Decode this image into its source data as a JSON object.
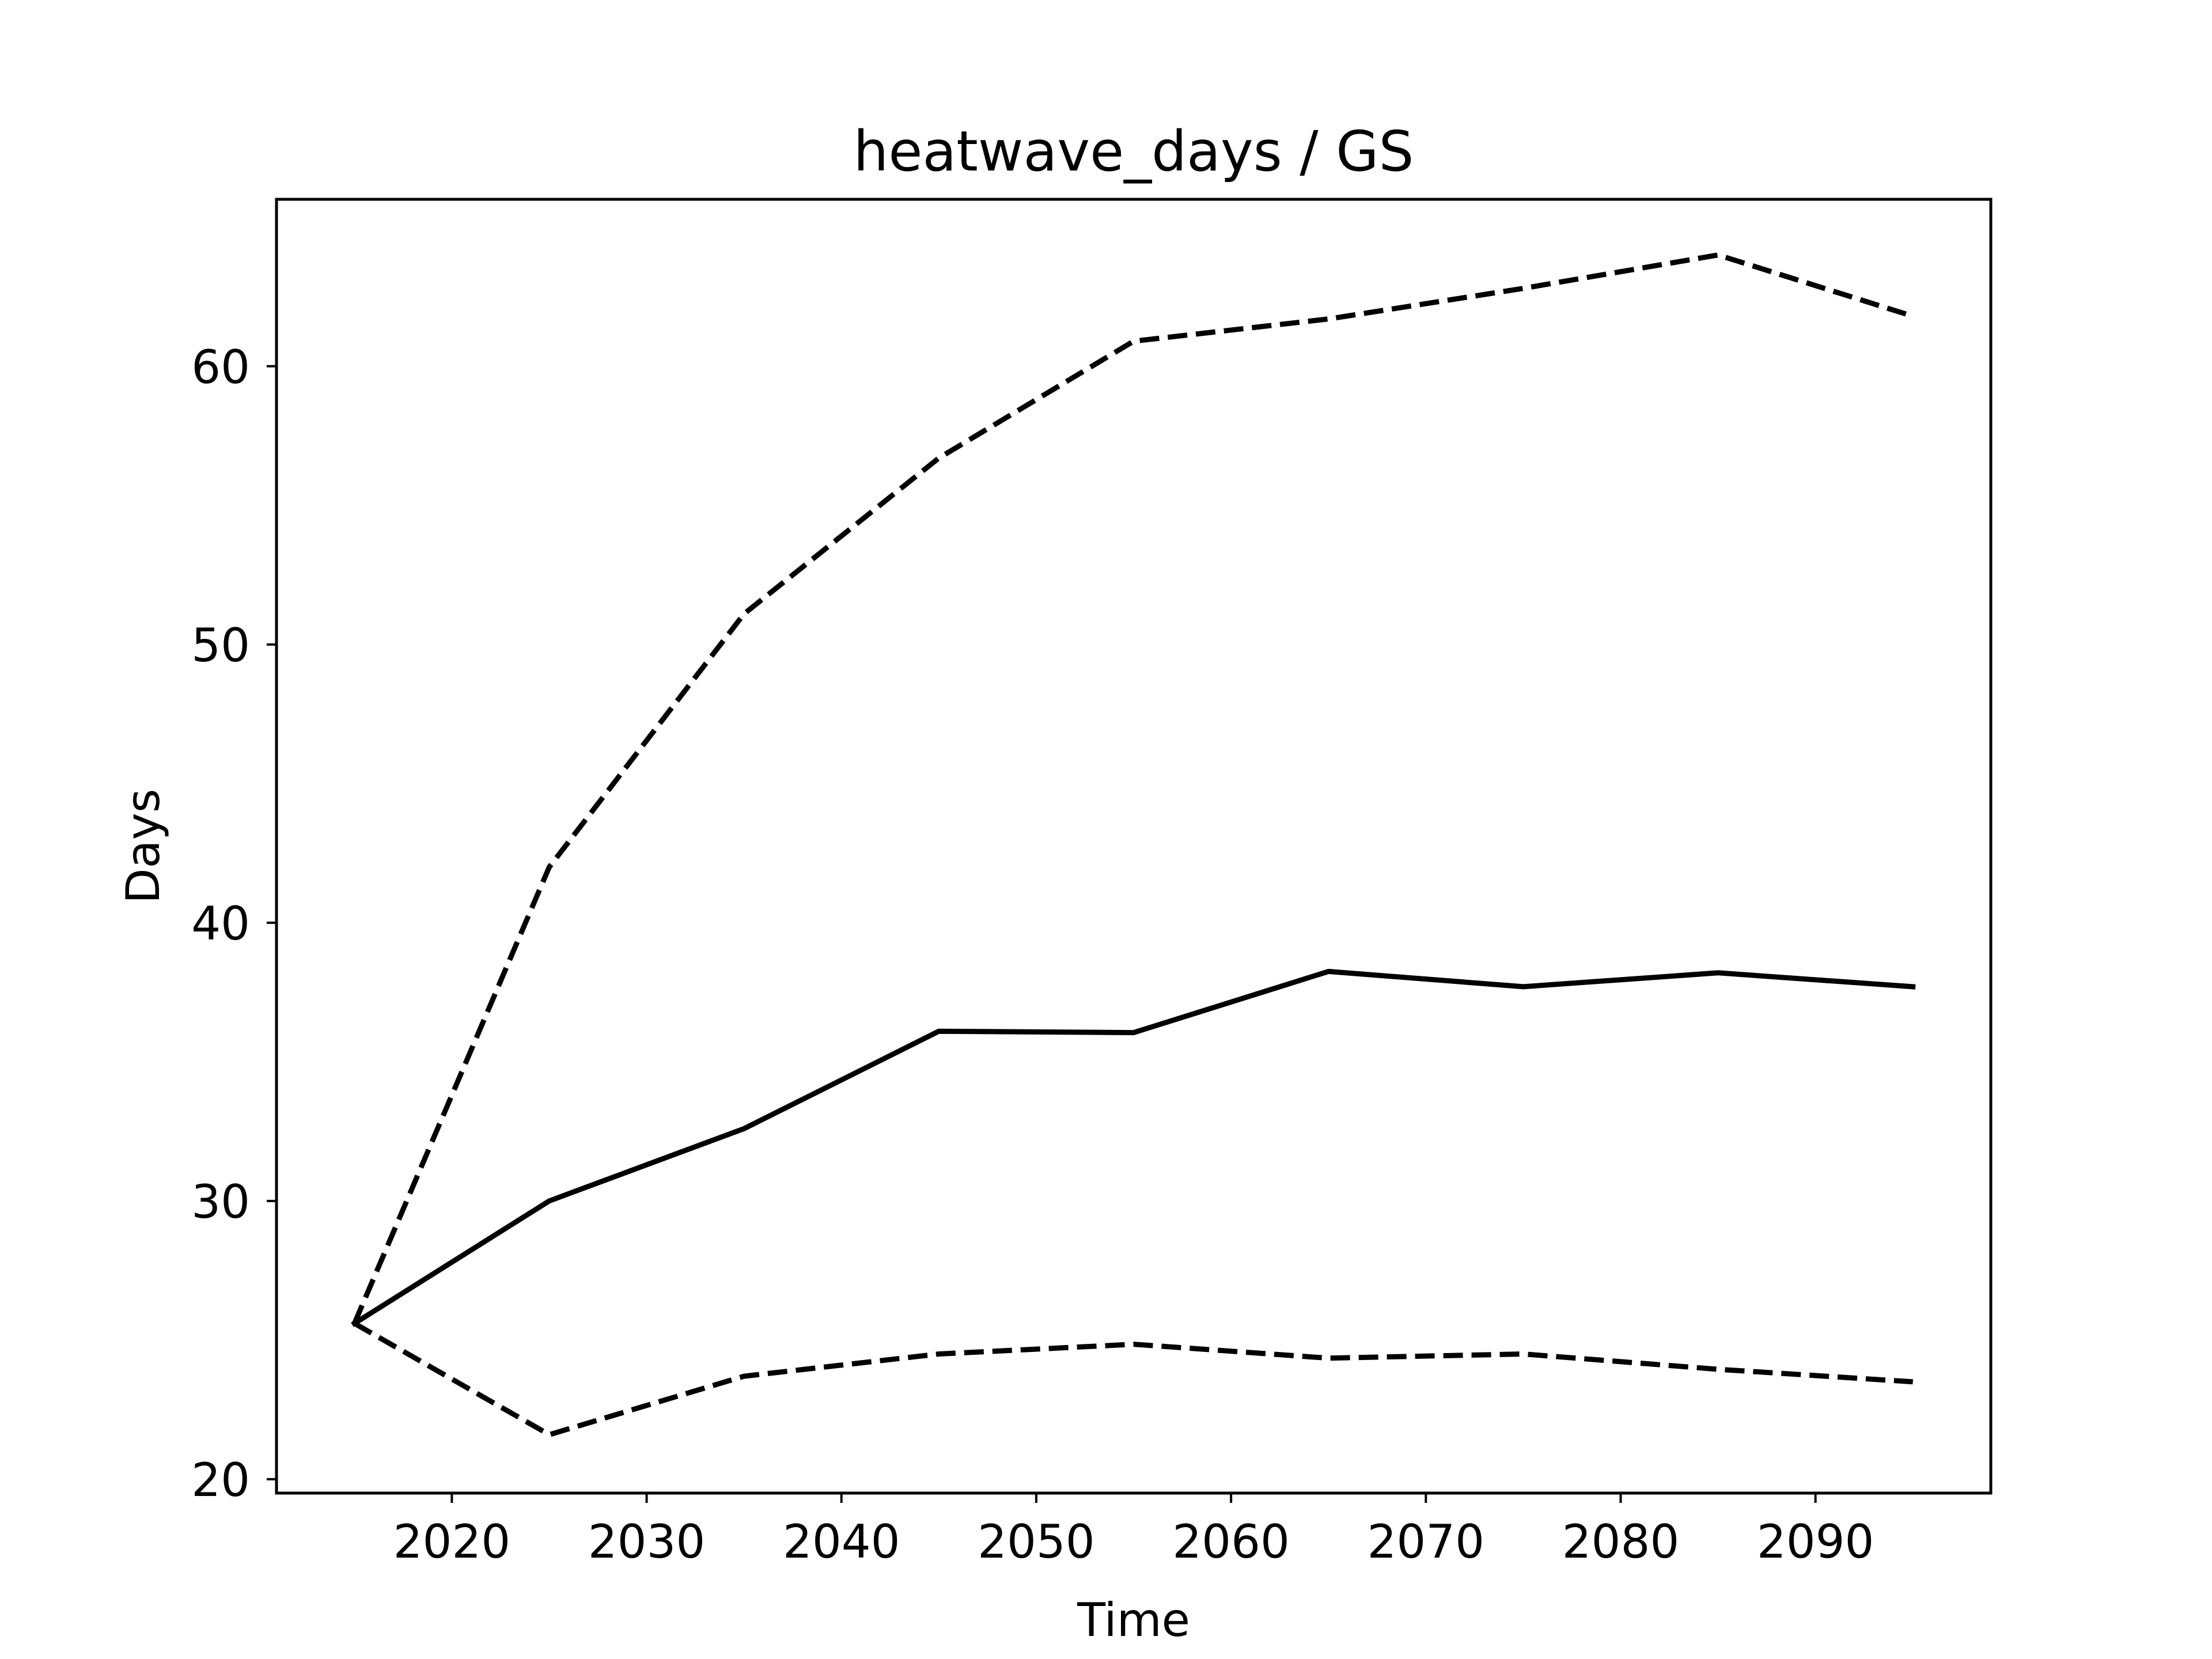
{
  "chart_data": {
    "type": "line",
    "title": "heatwave_days / GS",
    "xlabel": "Time",
    "ylabel": "Days",
    "x": [
      2015,
      2025,
      2035,
      2045,
      2055,
      2065,
      2075,
      2085,
      2095
    ],
    "series": [
      {
        "style": "dashed",
        "values": [
          25.6,
          42.0,
          51.1,
          56.7,
          60.9,
          61.7,
          62.8,
          64.0,
          61.8
        ]
      },
      {
        "style": "solid",
        "values": [
          25.6,
          30.0,
          32.6,
          36.1,
          36.05,
          38.25,
          37.7,
          38.2,
          37.7
        ]
      },
      {
        "style": "dashed",
        "values": [
          25.6,
          21.6,
          23.7,
          24.5,
          24.85,
          24.35,
          24.5,
          23.95,
          23.5
        ]
      }
    ],
    "xlim": [
      2011,
      2099
    ],
    "ylim": [
      19.5,
      66.0
    ],
    "xticks": [
      2020,
      2030,
      2040,
      2050,
      2060,
      2070,
      2080,
      2090
    ],
    "yticks": [
      20,
      30,
      40,
      50,
      60
    ],
    "line_color": "#000000",
    "grid": false,
    "legend": false
  }
}
